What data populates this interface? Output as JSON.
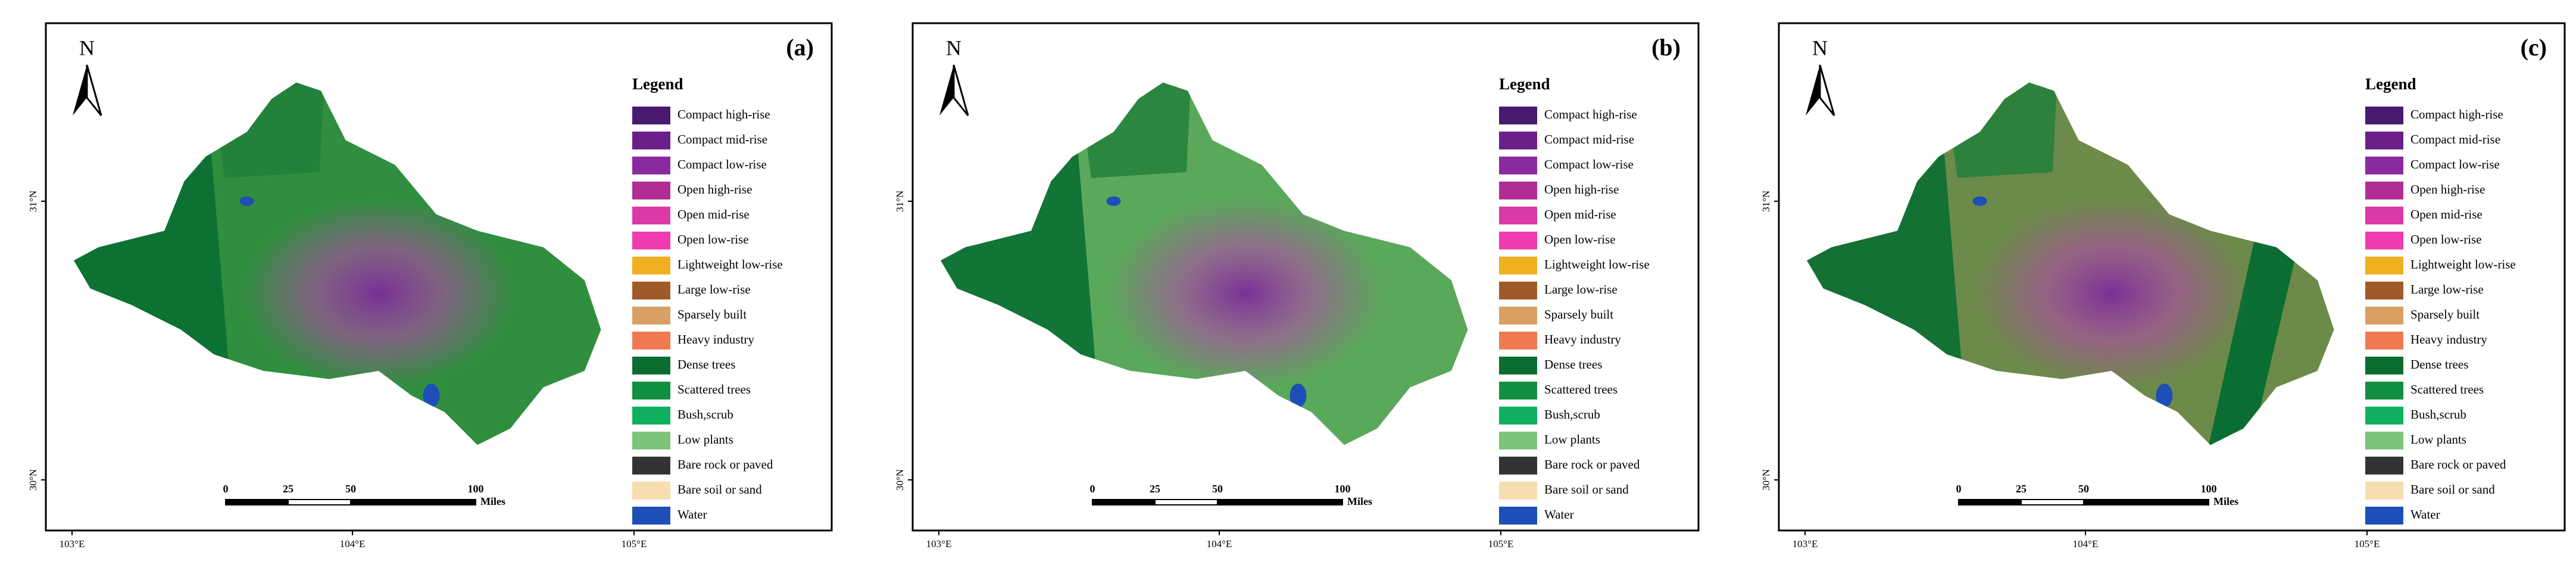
{
  "panels": [
    {
      "label": "(a)"
    },
    {
      "label": "(b)"
    },
    {
      "label": "(c)"
    }
  ],
  "legend": {
    "title": "Legend",
    "items": [
      {
        "name": "Compact high-rise",
        "color": "#4a1970"
      },
      {
        "name": "Compact mid-rise",
        "color": "#6a1f8a"
      },
      {
        "name": "Compact low-rise",
        "color": "#8b2aa0"
      },
      {
        "name": "Open high-rise",
        "color": "#b22c95"
      },
      {
        "name": "Open mid-rise",
        "color": "#d93aa8"
      },
      {
        "name": "Open low-rise",
        "color": "#f03cb0"
      },
      {
        "name": "Lightweight low-rise",
        "color": "#f0b020"
      },
      {
        "name": "Large low-rise",
        "color": "#a05a28"
      },
      {
        "name": "Sparsely built",
        "color": "#d8a062"
      },
      {
        "name": "Heavy industry",
        "color": "#f07a50"
      },
      {
        "name": "Dense trees",
        "color": "#0a6e32"
      },
      {
        "name": "Scattered trees",
        "color": "#109040"
      },
      {
        "name": "Bush,scrub",
        "color": "#10b060"
      },
      {
        "name": "Low plants",
        "color": "#7cc47a"
      },
      {
        "name": "Bare rock or paved",
        "color": "#333333"
      },
      {
        "name": "Bare soil or sand",
        "color": "#f8ddb0"
      },
      {
        "name": "Water",
        "color": "#1e4fb8"
      }
    ]
  },
  "north": "N",
  "scale_bar": {
    "ticks": [
      0,
      25,
      50,
      100
    ],
    "unit": "Miles"
  },
  "x_labels": [
    "103°E",
    "104°E",
    "105°E"
  ],
  "y_labels": [
    "31°N",
    "30°N"
  ]
}
